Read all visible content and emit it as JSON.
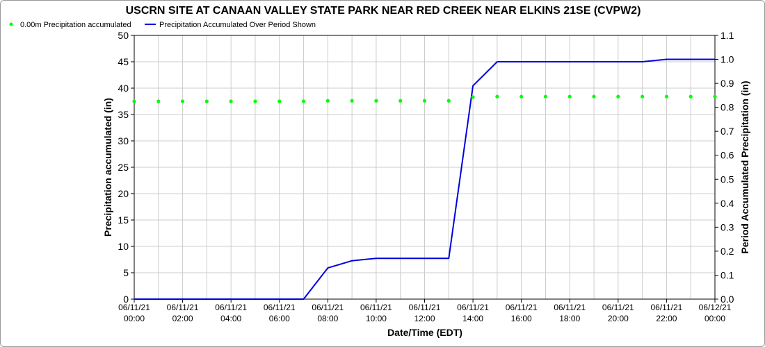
{
  "chart_data": {
    "type": "line",
    "title": "USCRN SITE AT CANAAN VALLEY STATE PARK NEAR RED CREEK NEAR ELKINS 21SE (CVPW2)",
    "xlabel": "Date/Time (EDT)",
    "ylabel_left": "Precipitation accumulated (in)",
    "ylabel_right": "Period Accumulated Precipitation (in)",
    "ylim_left": [
      0,
      50
    ],
    "ylim_right": [
      0,
      1.1
    ],
    "yticks_left": [
      "0",
      "5",
      "10",
      "15",
      "20",
      "25",
      "30",
      "35",
      "40",
      "45",
      "50"
    ],
    "yticks_right": [
      "0.0",
      "0.1",
      "0.2",
      "0.3",
      "0.4",
      "0.5",
      "0.6",
      "0.7",
      "0.8",
      "0.9",
      "1.0",
      "1.1"
    ],
    "xlim_hours": [
      0,
      24
    ],
    "xticks": [
      {
        "date": "06/11/21",
        "time": "00:00"
      },
      {
        "date": "06/11/21",
        "time": "02:00"
      },
      {
        "date": "06/11/21",
        "time": "04:00"
      },
      {
        "date": "06/11/21",
        "time": "06:00"
      },
      {
        "date": "06/11/21",
        "time": "08:00"
      },
      {
        "date": "06/11/21",
        "time": "10:00"
      },
      {
        "date": "06/11/21",
        "time": "12:00"
      },
      {
        "date": "06/11/21",
        "time": "14:00"
      },
      {
        "date": "06/11/21",
        "time": "16:00"
      },
      {
        "date": "06/11/21",
        "time": "18:00"
      },
      {
        "date": "06/11/21",
        "time": "20:00"
      },
      {
        "date": "06/11/21",
        "time": "22:00"
      },
      {
        "date": "06/12/21",
        "time": "00:00"
      }
    ],
    "grid": true,
    "legend_position": "top-left",
    "series": [
      {
        "name": "0.00m Precipitation accumulated",
        "axis": "left",
        "style": "dots",
        "color": "#00ff00",
        "x": [
          0,
          1,
          2,
          3,
          4,
          5,
          6,
          7,
          8,
          9,
          10,
          11,
          12,
          13,
          14,
          15,
          16,
          17,
          18,
          19,
          20,
          21,
          22,
          23,
          24
        ],
        "y": [
          37.5,
          37.5,
          37.5,
          37.5,
          37.5,
          37.5,
          37.5,
          37.5,
          37.6,
          37.6,
          37.6,
          37.6,
          37.6,
          37.6,
          38.3,
          38.4,
          38.4,
          38.4,
          38.4,
          38.4,
          38.4,
          38.4,
          38.4,
          38.4,
          38.4
        ]
      },
      {
        "name": "Precipitation Accumulated Over Period Shown",
        "axis": "right",
        "style": "line",
        "color": "#0000dd",
        "x": [
          0,
          1,
          2,
          3,
          4,
          5,
          6,
          7,
          8,
          9,
          10,
          11,
          12,
          13,
          14,
          15,
          16,
          17,
          18,
          19,
          20,
          21,
          22,
          23,
          24
        ],
        "y": [
          0,
          0,
          0,
          0,
          0,
          0,
          0,
          0,
          0.13,
          0.16,
          0.17,
          0.17,
          0.17,
          0.17,
          0.89,
          0.99,
          0.99,
          0.99,
          0.99,
          0.99,
          0.99,
          0.99,
          1.0,
          1.0,
          1.0
        ]
      }
    ]
  }
}
